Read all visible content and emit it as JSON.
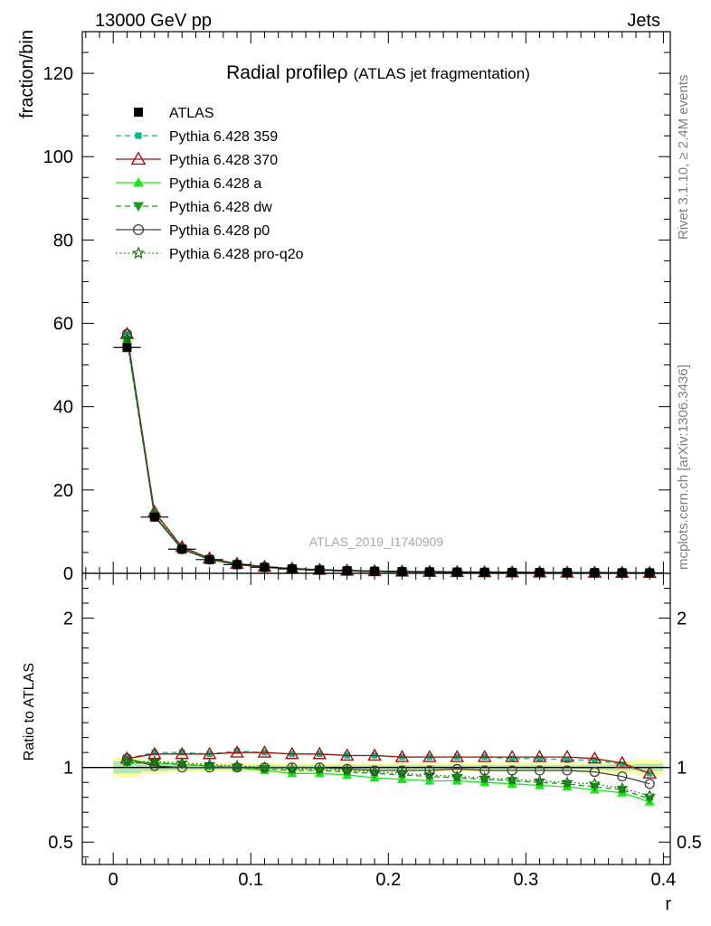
{
  "header": {
    "left": "13000 GeV pp",
    "right": "Jets"
  },
  "side": {
    "rivet": "Rivet 3.1.10, ≥ 2.4M events",
    "mcplots": "mcplots.cern.ch [arXiv:1306.3436]"
  },
  "chart_data": {
    "type": "line",
    "title": "Radial profileρ",
    "subtitle": "(ATLAS jet fragmentation)",
    "watermark": "ATLAS_2019_I1740909",
    "xlabel": "r",
    "ylabel": "fraction/bin",
    "ratio_ylabel": "Ratio to ATLAS",
    "xlim": [
      -0.0225,
      0.405
    ],
    "ylim": [
      0,
      130
    ],
    "ratio_ylim": [
      0.35,
      2.3
    ],
    "x_ticks": [
      "0",
      "0.1",
      "0.2",
      "0.3",
      "0.4"
    ],
    "y_ticks": [
      "0",
      "20",
      "40",
      "60",
      "80",
      "100",
      "120"
    ],
    "ratio_ticks": [
      "0.5",
      "1",
      "2"
    ],
    "x": [
      0.01,
      0.03,
      0.05,
      0.07,
      0.09,
      0.11,
      0.13,
      0.15,
      0.17,
      0.19,
      0.21,
      0.23,
      0.25,
      0.27,
      0.29,
      0.31,
      0.33,
      0.35,
      0.37,
      0.39
    ],
    "data": {
      "name": "ATLAS",
      "values": [
        54.2,
        13.5,
        5.8,
        3.3,
        2.1,
        1.45,
        1.05,
        0.8,
        0.62,
        0.5,
        0.41,
        0.35,
        0.3,
        0.26,
        0.23,
        0.2,
        0.18,
        0.16,
        0.14,
        0.12
      ]
    },
    "series": [
      {
        "name": "Pythia 6.428 359",
        "color": "#12b386",
        "dash": "6,4",
        "marker": "square-small",
        "ratio": [
          1.06,
          1.1,
          1.1,
          1.09,
          1.11,
          1.1,
          1.09,
          1.09,
          1.08,
          1.08,
          1.07,
          1.07,
          1.07,
          1.07,
          1.06,
          1.06,
          1.05,
          1.05,
          1.02,
          0.96
        ]
      },
      {
        "name": "Pythia 6.428 370",
        "color": "#a01010",
        "dash": "",
        "marker": "triangle-open",
        "ratio": [
          1.06,
          1.09,
          1.09,
          1.09,
          1.1,
          1.1,
          1.09,
          1.09,
          1.08,
          1.08,
          1.07,
          1.07,
          1.07,
          1.07,
          1.07,
          1.07,
          1.07,
          1.06,
          1.03,
          0.96
        ]
      },
      {
        "name": "Pythia 6.428 a",
        "color": "#1ee61e",
        "dash": "",
        "marker": "triangle-up",
        "ratio": [
          1.04,
          1.03,
          1.02,
          1.01,
          1.0,
          0.98,
          0.96,
          0.96,
          0.95,
          0.93,
          0.92,
          0.91,
          0.91,
          0.9,
          0.89,
          0.88,
          0.87,
          0.85,
          0.83,
          0.77
        ]
      },
      {
        "name": "Pythia 6.428 dw",
        "color": "#1a9a1a",
        "dash": "6,4",
        "marker": "triangle-down",
        "ratio": [
          1.03,
          1.03,
          1.02,
          1.01,
          1.0,
          0.99,
          0.98,
          0.98,
          0.97,
          0.96,
          0.95,
          0.94,
          0.93,
          0.92,
          0.91,
          0.9,
          0.89,
          0.87,
          0.85,
          0.79
        ]
      },
      {
        "name": "Pythia 6.428 p0",
        "color": "#404040",
        "dash": "",
        "marker": "circle-open",
        "ratio": [
          1.06,
          1.01,
          1.0,
          1.0,
          1.0,
          1.0,
          1.0,
          1.0,
          0.99,
          0.98,
          0.98,
          0.98,
          0.99,
          0.98,
          0.98,
          0.98,
          0.98,
          0.97,
          0.94,
          0.89
        ]
      },
      {
        "name": "Pythia 6.428 pro-q2o",
        "color": "#0e6e0e",
        "dash": "1.5,3",
        "marker": "star-open",
        "ratio": [
          1.04,
          1.04,
          1.03,
          1.02,
          1.01,
          1.0,
          0.99,
          0.99,
          0.98,
          0.97,
          0.96,
          0.95,
          0.94,
          0.93,
          0.92,
          0.91,
          0.9,
          0.89,
          0.86,
          0.81
        ]
      }
    ],
    "band_colors": {
      "outer": "#ffff9e",
      "inner": "#b2e6b2"
    },
    "legend_position": "top-left"
  }
}
